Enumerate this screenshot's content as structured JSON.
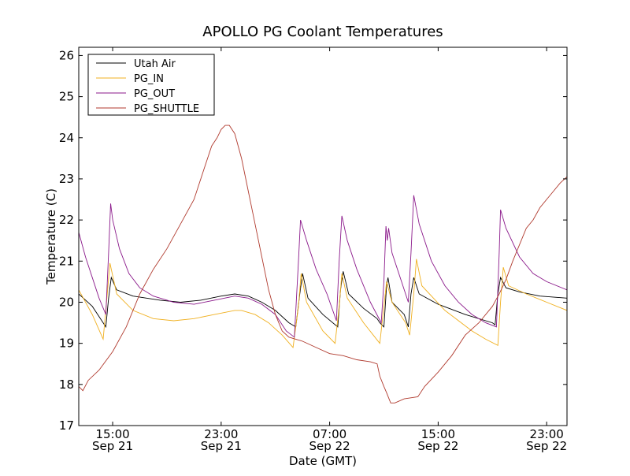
{
  "chart_data": {
    "type": "line",
    "title": "APOLLO PG Coolant Temperatures",
    "xlabel": "Date (GMT)",
    "ylabel": "Temperature (C)",
    "xlim": [
      12.5,
      48.5
    ],
    "ylim": [
      17,
      26.2
    ],
    "yticks": [
      17,
      18,
      19,
      20,
      21,
      22,
      23,
      24,
      25,
      26
    ],
    "xticks": [
      {
        "x": 15,
        "time": "15:00",
        "date": "Sep 21"
      },
      {
        "x": 23,
        "time": "23:00",
        "date": "Sep 21"
      },
      {
        "x": 31,
        "time": "07:00",
        "date": "Sep 22"
      },
      {
        "x": 39,
        "time": "15:00",
        "date": "Sep 22"
      },
      {
        "x": 47,
        "time": "23:00",
        "date": "Sep 22"
      }
    ],
    "legend_position": "top-left",
    "series": [
      {
        "name": "Utah Air",
        "color": "#000000",
        "points": [
          [
            12.5,
            20.2
          ],
          [
            13.5,
            19.9
          ],
          [
            14.5,
            19.4
          ],
          [
            14.7,
            20.1
          ],
          [
            14.9,
            20.6
          ],
          [
            15.3,
            20.3
          ],
          [
            16.5,
            20.15
          ],
          [
            18.5,
            20.05
          ],
          [
            20.0,
            20.0
          ],
          [
            21.5,
            20.05
          ],
          [
            23.0,
            20.15
          ],
          [
            24.0,
            20.2
          ],
          [
            25.0,
            20.15
          ],
          [
            26.0,
            20.0
          ],
          [
            27.0,
            19.8
          ],
          [
            28.0,
            19.5
          ],
          [
            28.5,
            19.4
          ],
          [
            28.8,
            20.2
          ],
          [
            29.0,
            20.7
          ],
          [
            29.4,
            20.1
          ],
          [
            30.5,
            19.7
          ],
          [
            31.6,
            19.4
          ],
          [
            31.8,
            20.3
          ],
          [
            32.0,
            20.75
          ],
          [
            32.4,
            20.2
          ],
          [
            33.5,
            19.85
          ],
          [
            34.5,
            19.6
          ],
          [
            34.7,
            19.5
          ],
          [
            35.0,
            19.4
          ],
          [
            35.2,
            20.4
          ],
          [
            35.3,
            20.6
          ],
          [
            35.6,
            20.0
          ],
          [
            36.5,
            19.7
          ],
          [
            36.8,
            19.4
          ],
          [
            37.0,
            20.2
          ],
          [
            37.2,
            20.6
          ],
          [
            37.6,
            20.2
          ],
          [
            39.0,
            19.95
          ],
          [
            41.0,
            19.7
          ],
          [
            43.0,
            19.5
          ],
          [
            43.2,
            19.45
          ],
          [
            43.4,
            20.2
          ],
          [
            43.6,
            20.6
          ],
          [
            44.0,
            20.35
          ],
          [
            45.0,
            20.25
          ],
          [
            46.5,
            20.15
          ],
          [
            48.5,
            20.1
          ]
        ]
      },
      {
        "name": "PG_IN",
        "color": "#f0b020",
        "points": [
          [
            12.5,
            20.3
          ],
          [
            13.5,
            19.7
          ],
          [
            14.3,
            19.1
          ],
          [
            14.6,
            20.2
          ],
          [
            14.8,
            20.95
          ],
          [
            15.3,
            20.2
          ],
          [
            16.5,
            19.8
          ],
          [
            18.0,
            19.6
          ],
          [
            19.5,
            19.55
          ],
          [
            21.0,
            19.6
          ],
          [
            22.5,
            19.7
          ],
          [
            24.0,
            19.8
          ],
          [
            24.5,
            19.8
          ],
          [
            25.5,
            19.7
          ],
          [
            26.5,
            19.5
          ],
          [
            27.5,
            19.2
          ],
          [
            28.3,
            18.9
          ],
          [
            28.7,
            19.9
          ],
          [
            28.9,
            20.7
          ],
          [
            29.3,
            20.0
          ],
          [
            30.5,
            19.3
          ],
          [
            31.4,
            19.0
          ],
          [
            31.7,
            19.9
          ],
          [
            31.9,
            20.7
          ],
          [
            32.3,
            20.1
          ],
          [
            33.5,
            19.5
          ],
          [
            34.7,
            19.0
          ],
          [
            35.0,
            19.9
          ],
          [
            35.2,
            20.5
          ],
          [
            35.6,
            20.0
          ],
          [
            36.6,
            19.5
          ],
          [
            36.9,
            19.2
          ],
          [
            37.2,
            20.2
          ],
          [
            37.4,
            21.05
          ],
          [
            37.8,
            20.4
          ],
          [
            39.5,
            19.8
          ],
          [
            41.5,
            19.3
          ],
          [
            42.5,
            19.1
          ],
          [
            43.4,
            18.95
          ],
          [
            43.6,
            20.0
          ],
          [
            43.8,
            20.85
          ],
          [
            44.2,
            20.4
          ],
          [
            45.5,
            20.2
          ],
          [
            47.0,
            20.0
          ],
          [
            48.5,
            19.8
          ]
        ]
      },
      {
        "name": "PG_OUT",
        "color": "#8b1a8b",
        "points": [
          [
            12.5,
            21.7
          ],
          [
            13.0,
            21.1
          ],
          [
            13.5,
            20.6
          ],
          [
            14.0,
            20.1
          ],
          [
            14.5,
            19.7
          ],
          [
            14.7,
            21.2
          ],
          [
            14.85,
            22.4
          ],
          [
            15.0,
            22.0
          ],
          [
            15.5,
            21.3
          ],
          [
            16.2,
            20.7
          ],
          [
            17.0,
            20.35
          ],
          [
            18.0,
            20.15
          ],
          [
            19.5,
            20.0
          ],
          [
            21.0,
            19.95
          ],
          [
            22.5,
            20.05
          ],
          [
            24.0,
            20.15
          ],
          [
            25.0,
            20.1
          ],
          [
            26.0,
            19.95
          ],
          [
            27.0,
            19.7
          ],
          [
            27.8,
            19.3
          ],
          [
            28.4,
            19.15
          ],
          [
            28.7,
            21.0
          ],
          [
            28.85,
            22.0
          ],
          [
            29.3,
            21.5
          ],
          [
            30.0,
            20.8
          ],
          [
            30.8,
            20.2
          ],
          [
            31.5,
            19.55
          ],
          [
            31.7,
            21.0
          ],
          [
            31.9,
            22.1
          ],
          [
            32.3,
            21.5
          ],
          [
            33.0,
            20.8
          ],
          [
            34.0,
            20.0
          ],
          [
            34.8,
            19.5
          ],
          [
            35.0,
            20.5
          ],
          [
            35.15,
            21.85
          ],
          [
            35.25,
            21.5
          ],
          [
            35.35,
            21.8
          ],
          [
            35.6,
            21.2
          ],
          [
            36.3,
            20.5
          ],
          [
            36.8,
            20.0
          ],
          [
            37.0,
            21.2
          ],
          [
            37.2,
            22.6
          ],
          [
            37.6,
            21.9
          ],
          [
            38.5,
            21.0
          ],
          [
            39.5,
            20.4
          ],
          [
            40.5,
            20.0
          ],
          [
            41.5,
            19.7
          ],
          [
            42.5,
            19.5
          ],
          [
            43.3,
            19.4
          ],
          [
            43.5,
            21.2
          ],
          [
            43.6,
            22.25
          ],
          [
            44.0,
            21.8
          ],
          [
            45.0,
            21.1
          ],
          [
            46.0,
            20.7
          ],
          [
            47.0,
            20.5
          ],
          [
            48.5,
            20.3
          ]
        ]
      },
      {
        "name": "PG_SHUTTLE",
        "color": "#b03a2e",
        "points": [
          [
            12.5,
            17.95
          ],
          [
            12.8,
            17.85
          ],
          [
            13.2,
            18.1
          ],
          [
            14.0,
            18.35
          ],
          [
            15.0,
            18.8
          ],
          [
            16.0,
            19.4
          ],
          [
            17.0,
            20.2
          ],
          [
            18.0,
            20.8
          ],
          [
            19.0,
            21.3
          ],
          [
            20.0,
            21.9
          ],
          [
            21.0,
            22.5
          ],
          [
            21.7,
            23.2
          ],
          [
            22.3,
            23.8
          ],
          [
            22.7,
            24.0
          ],
          [
            23.0,
            24.2
          ],
          [
            23.3,
            24.3
          ],
          [
            23.6,
            24.3
          ],
          [
            24.0,
            24.1
          ],
          [
            24.5,
            23.5
          ],
          [
            25.0,
            22.7
          ],
          [
            25.5,
            21.9
          ],
          [
            26.0,
            21.1
          ],
          [
            26.5,
            20.3
          ],
          [
            27.0,
            19.7
          ],
          [
            27.5,
            19.3
          ],
          [
            28.0,
            19.15
          ],
          [
            28.5,
            19.1
          ],
          [
            29.0,
            19.05
          ],
          [
            30.0,
            18.9
          ],
          [
            31.0,
            18.75
          ],
          [
            32.0,
            18.7
          ],
          [
            33.0,
            18.6
          ],
          [
            34.0,
            18.55
          ],
          [
            34.5,
            18.5
          ],
          [
            34.7,
            18.2
          ],
          [
            35.0,
            17.95
          ],
          [
            35.2,
            17.8
          ],
          [
            35.5,
            17.55
          ],
          [
            35.8,
            17.55
          ],
          [
            36.5,
            17.65
          ],
          [
            37.5,
            17.7
          ],
          [
            38.0,
            17.95
          ],
          [
            39.0,
            18.3
          ],
          [
            40.0,
            18.7
          ],
          [
            41.0,
            19.2
          ],
          [
            42.0,
            19.5
          ],
          [
            43.0,
            19.9
          ],
          [
            43.5,
            20.2
          ],
          [
            44.0,
            20.55
          ],
          [
            44.5,
            21.0
          ],
          [
            45.0,
            21.4
          ],
          [
            45.5,
            21.8
          ],
          [
            46.0,
            22.0
          ],
          [
            46.5,
            22.3
          ],
          [
            47.0,
            22.5
          ],
          [
            47.5,
            22.7
          ],
          [
            48.0,
            22.9
          ],
          [
            48.5,
            23.05
          ]
        ]
      }
    ]
  }
}
